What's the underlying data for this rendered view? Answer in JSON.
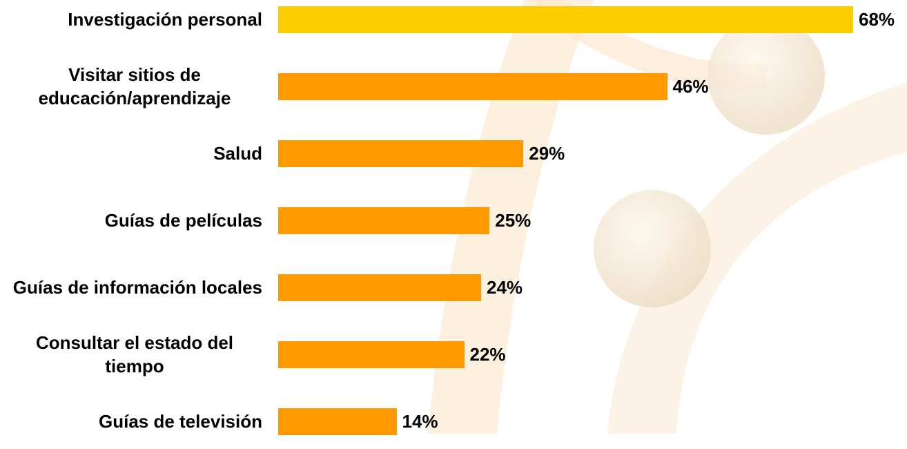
{
  "chart_data": {
    "type": "bar",
    "orientation": "horizontal",
    "categories": [
      "Investigación personal",
      "Visitar sitios de educación/aprendizaje",
      "Salud",
      "Guías de películas",
      "Guías de información locales",
      "Consultar el estado del tiempo",
      "Guías de televisión"
    ],
    "values": [
      68,
      46,
      29,
      25,
      24,
      22,
      14
    ],
    "value_labels": [
      "68%",
      "46%",
      "29%",
      "25%",
      "24%",
      "22%",
      "14%"
    ],
    "colors": [
      "#ffcc00",
      "#ff9900",
      "#ff9900",
      "#ff9900",
      "#ff9900",
      "#ff9900",
      "#ff9900"
    ]
  }
}
